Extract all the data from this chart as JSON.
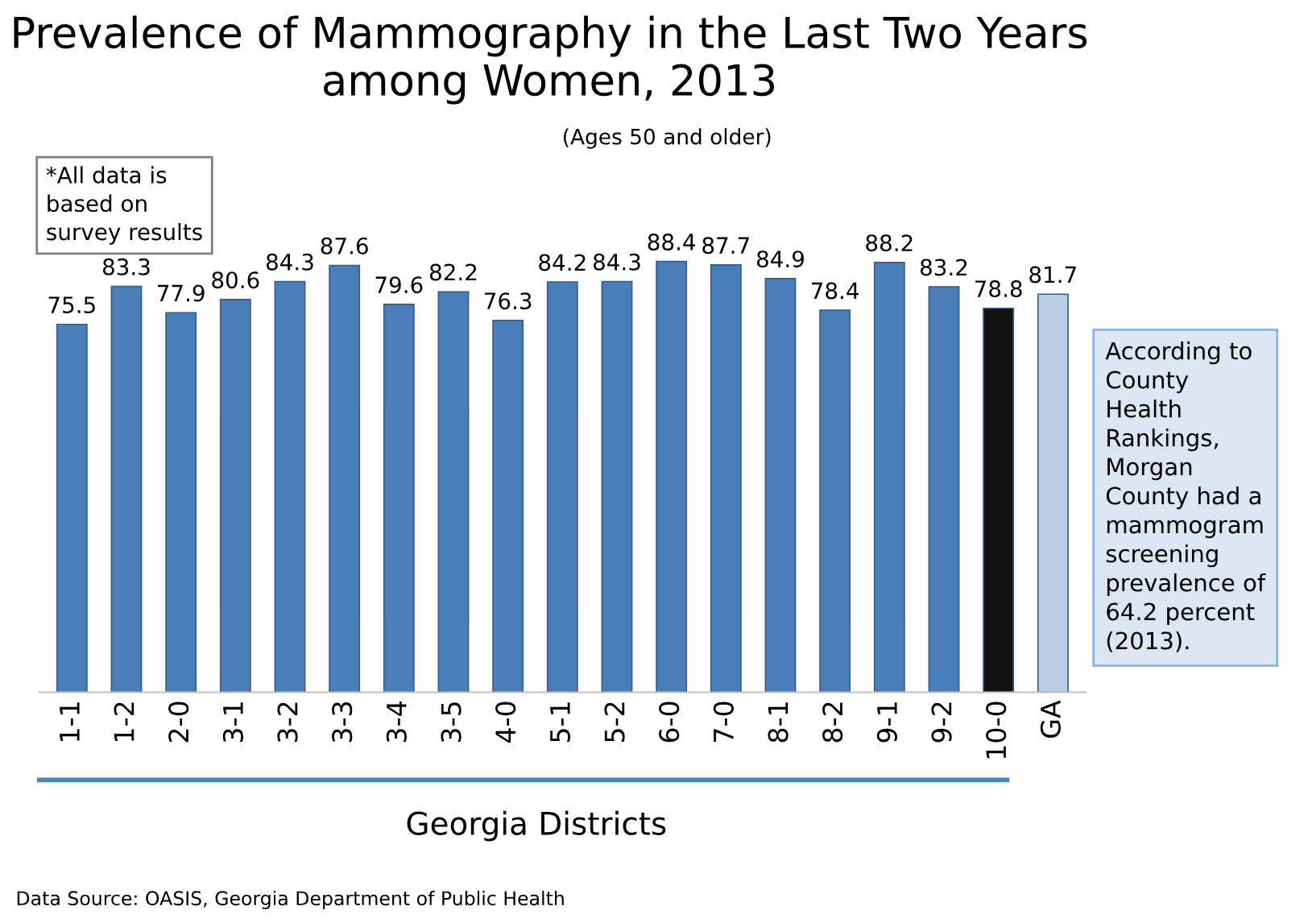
{
  "chart_data": {
    "type": "bar",
    "title": "Prevalence of Mammography in the Last Two Years among Women, 2013",
    "subtitle": "(Ages 50 and older)",
    "xlabel": "Georgia Districts",
    "categories": [
      "1-1",
      "1-2",
      "2-0",
      "3-1",
      "3-2",
      "3-3",
      "3-4",
      "3-5",
      "4-0",
      "5-1",
      "5-2",
      "6-0",
      "7-0",
      "8-1",
      "8-2",
      "9-1",
      "9-2",
      "10-0",
      "GA"
    ],
    "values": [
      75.5,
      83.3,
      77.9,
      80.6,
      84.3,
      87.6,
      79.6,
      82.2,
      76.3,
      84.2,
      84.3,
      88.4,
      87.7,
      84.9,
      78.4,
      88.2,
      83.2,
      78.8,
      81.7
    ],
    "colors": [
      "#4a7ebb",
      "#4a7ebb",
      "#4a7ebb",
      "#4a7ebb",
      "#4a7ebb",
      "#4a7ebb",
      "#4a7ebb",
      "#4a7ebb",
      "#4a7ebb",
      "#4a7ebb",
      "#4a7ebb",
      "#4a7ebb",
      "#4a7ebb",
      "#4a7ebb",
      "#4a7ebb",
      "#4a7ebb",
      "#4a7ebb",
      "#111111",
      "#b9cde5"
    ],
    "data_labels": true,
    "tick_labels": "x",
    "grid": false,
    "legend": false,
    "annotations": [
      "*All data is\nbased on\nsurvey results",
      "According to\nCounty\nHealth\nRankings,\nMorgan\nCounty had a\nmammogram\nscreening\nprevalence of\n64.2 percent\n(2013).",
      "Data Source: OASIS, Georgia Department of Public Health"
    ]
  }
}
